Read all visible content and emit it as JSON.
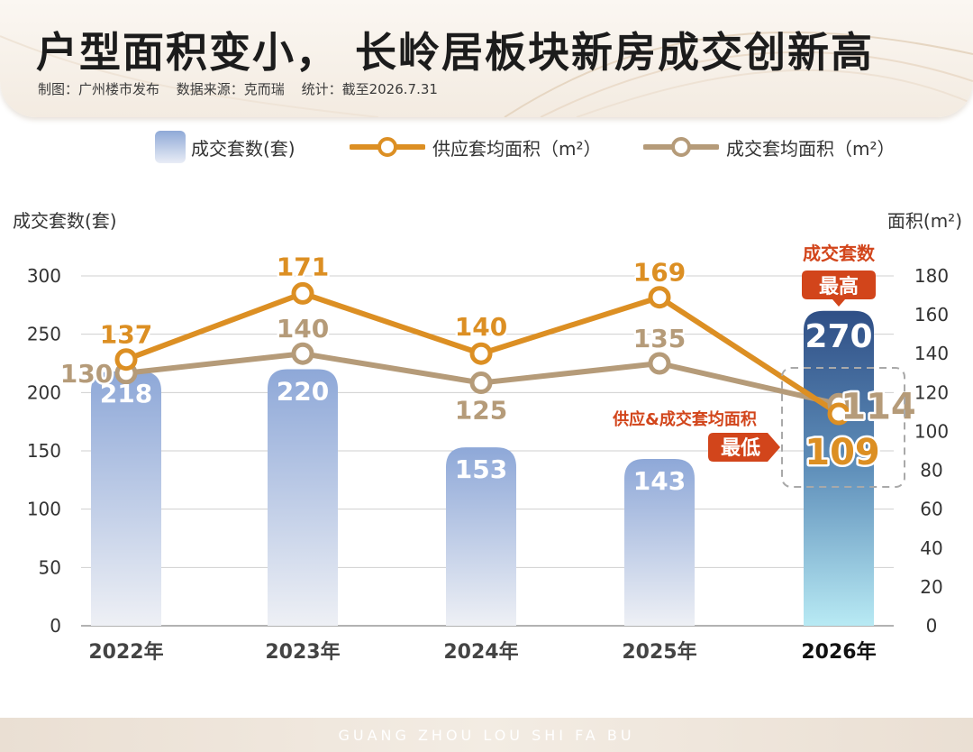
{
  "header": {
    "title": "户型面积变小， 长岭居板块新房成交创新高",
    "maker": "制图：广州楼市发布",
    "source": "数据来源：克而瑞",
    "stat": "统计：截至2026.7.31"
  },
  "legend": {
    "bars": "成交套数(套)",
    "supply": "供应套均面积（m²）",
    "deal": "成交套均面积（m²）"
  },
  "colors": {
    "supply_line": "#dc8f23",
    "deal_line": "#b59b79",
    "bar_top": "#8ea8d8",
    "bar_bottom": "#eef0f5",
    "highlight_bar_top": "#2f4f86",
    "highlight_bar_bottom": "#b8eaf4",
    "callout_red": "#d2451b"
  },
  "chart_data": {
    "type": "bar",
    "categories": [
      "2022年",
      "2023年",
      "2024年",
      "2025年",
      "2026年"
    ],
    "series": [
      {
        "name": "成交套数(套)",
        "type": "bar",
        "axis": "left",
        "values": [
          218,
          220,
          153,
          143,
          270
        ]
      },
      {
        "name": "供应套均面积（m²）",
        "type": "line",
        "axis": "right",
        "values": [
          137,
          171,
          140,
          169,
          109
        ]
      },
      {
        "name": "成交套均面积（m²）",
        "type": "line",
        "axis": "right",
        "values": [
          130,
          140,
          125,
          135,
          114
        ]
      }
    ],
    "ylabel_left": "成交套数(套)",
    "ylabel_right": "面积(m²)",
    "ylim_left": [
      0,
      300
    ],
    "yticks_left": [
      0,
      50,
      100,
      150,
      200,
      250,
      300
    ],
    "ylim_right": [
      0,
      180
    ],
    "yticks_right": [
      0,
      20,
      40,
      60,
      80,
      100,
      120,
      140,
      160,
      180
    ],
    "grid": true,
    "annotations": {
      "highest_caption": "成交套数",
      "highest_badge": "最高",
      "lowest_caption": "供应&成交套均面积",
      "lowest_badge": "最低"
    }
  },
  "footer": {
    "text": "GUANG ZHOU LOU SHI FA BU"
  }
}
